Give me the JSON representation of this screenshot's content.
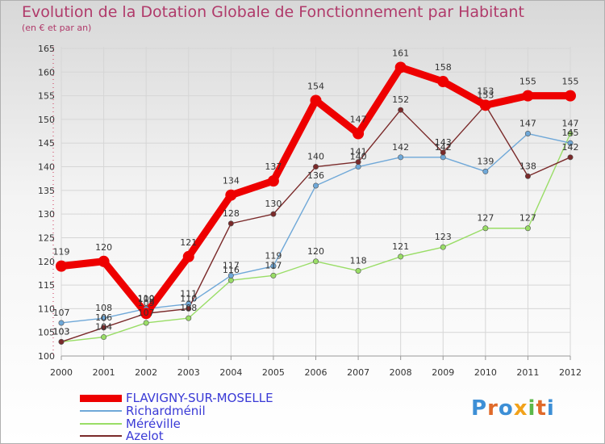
{
  "chart_data": {
    "type": "line",
    "title": "Evolution de la Dotation Globale de Fonctionnement par Habitant",
    "subtitle": "(en € et par an)",
    "x": [
      "2000",
      "2001",
      "2002",
      "2003",
      "2004",
      "2005",
      "2006",
      "2007",
      "2008",
      "2009",
      "2010",
      "2011",
      "2012"
    ],
    "ylim": [
      100,
      165
    ],
    "yticks": [
      100,
      105,
      110,
      115,
      120,
      125,
      130,
      135,
      140,
      145,
      150,
      155,
      160,
      165
    ],
    "series": [
      {
        "name": "FLAVIGNY-SUR-MOSELLE",
        "color": "#ee0000",
        "values": [
          119,
          120,
          109,
          121,
          134,
          137,
          154,
          147,
          161,
          158,
          153,
          155,
          155
        ]
      },
      {
        "name": "Richardménil",
        "color": "#6fa8d8",
        "values": [
          107,
          108,
          110,
          111,
          117,
          119,
          136,
          140,
          142,
          142,
          139,
          147,
          145
        ]
      },
      {
        "name": "Méréville",
        "color": "#99dd66",
        "values": [
          103,
          104,
          107,
          108,
          116,
          117,
          120,
          118,
          121,
          123,
          127,
          127,
          147
        ]
      },
      {
        "name": "Azelot",
        "color": "#7a2a2a",
        "values": [
          103,
          106,
          109,
          110,
          128,
          130,
          140,
          141,
          152,
          143,
          153,
          138,
          142
        ]
      }
    ]
  },
  "logo": {
    "letters": [
      "P",
      "r",
      "o",
      "x",
      "i",
      "t",
      "i"
    ],
    "colors": [
      "#3d8fd6",
      "#e06a2a",
      "#3d8fd6",
      "#f2a21a",
      "#5cb84a",
      "#e06a2a",
      "#3d8fd6"
    ]
  }
}
